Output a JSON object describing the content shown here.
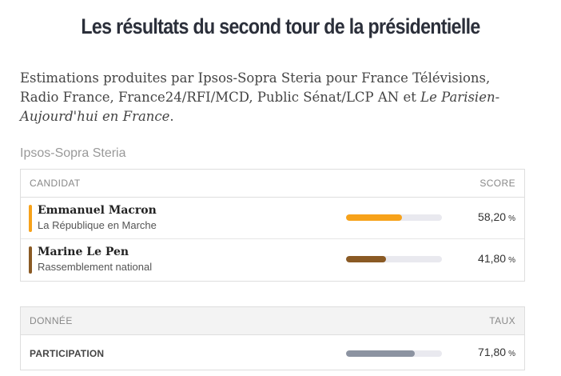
{
  "title": "Les résultats du second tour de la présidentielle",
  "intro": {
    "text": "Estimations produites par Ipsos-Sopra Steria pour France Télévisions, Radio France, France24/RFI/MCD, Public Sénat/LCP AN et ",
    "italic": "Le Parisien-Aujourd'hui en France",
    "end": "."
  },
  "source": "Ipsos-Sopra Steria",
  "results_table": {
    "col_candidate": "CANDIDAT",
    "col_score": "SCORE",
    "rows": [
      {
        "name": "Emmanuel Macron",
        "party": "La République en Marche",
        "score": "58,20",
        "unit": "%",
        "fraction": 0.582,
        "color": "#f7a21a"
      },
      {
        "name": "Marine Le Pen",
        "party": "Rassemblement national",
        "score": "41,80",
        "unit": "%",
        "fraction": 0.418,
        "color": "#8a5a24"
      }
    ]
  },
  "data_table": {
    "col_data": "DONNÉE",
    "col_rate": "TAUX",
    "rows": [
      {
        "label": "PARTICIPATION",
        "score": "71,80",
        "unit": "%",
        "fraction": 0.718,
        "color": "#8c93a1"
      }
    ]
  }
}
